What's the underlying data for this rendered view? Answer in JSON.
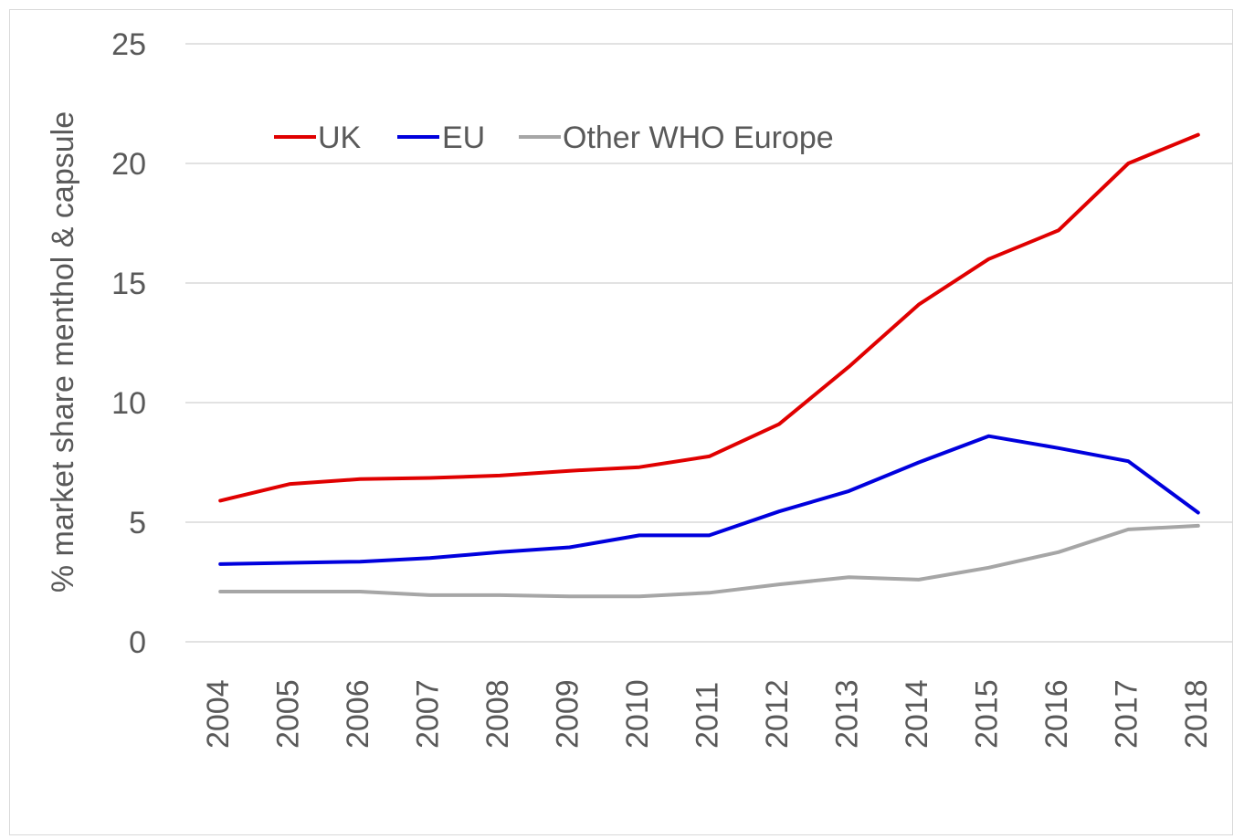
{
  "chart_data": {
    "type": "line",
    "ylabel": "% market share menthol & capsule",
    "xlabel": "",
    "ylim": [
      0,
      25
    ],
    "yticks": [
      "0",
      "5",
      "10",
      "15",
      "20",
      "25"
    ],
    "grid": "horizontal",
    "legend_position": "top-left",
    "categories": [
      "2004",
      "2005",
      "2006",
      "2007",
      "2008",
      "2009",
      "2010",
      "2011",
      "2012",
      "2013",
      "2014",
      "2015",
      "2016",
      "2017",
      "2018"
    ],
    "series": [
      {
        "name": "UK",
        "color": "#e00000",
        "values": [
          5.9,
          6.6,
          6.8,
          6.85,
          6.95,
          7.15,
          7.3,
          7.75,
          9.1,
          11.5,
          14.1,
          16.0,
          17.2,
          20.0,
          21.2
        ]
      },
      {
        "name": "EU",
        "color": "#0000dd",
        "values": [
          3.25,
          3.3,
          3.35,
          3.5,
          3.75,
          3.95,
          4.45,
          4.45,
          5.45,
          6.3,
          7.5,
          8.6,
          8.1,
          7.55,
          5.4
        ]
      },
      {
        "name": "Other WHO Europe",
        "color": "#a6a6a6",
        "values": [
          2.1,
          2.1,
          2.1,
          1.95,
          1.95,
          1.9,
          1.9,
          2.05,
          2.4,
          2.7,
          2.6,
          3.1,
          3.75,
          4.7,
          4.85
        ]
      }
    ]
  }
}
